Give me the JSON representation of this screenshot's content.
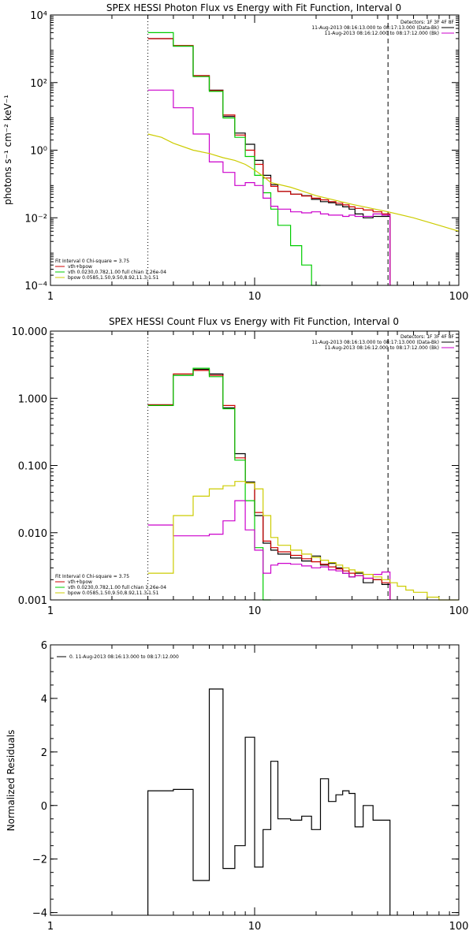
{
  "chart_data": [
    {
      "type": "line",
      "title": "SPEX HESSI Photon Flux vs Energy with Fit Function, Interval 0",
      "xlabel": "",
      "ylabel": "photons s⁻¹ cm⁻² keV⁻¹",
      "xscale": "log",
      "yscale": "log",
      "xlim": [
        1,
        100
      ],
      "ylim": [
        0.0001,
        10000
      ],
      "xticks": [
        1,
        10,
        100
      ],
      "xticklabels": [
        "1",
        "10",
        "100"
      ],
      "yticks": [
        0.0001,
        0.01,
        1,
        100,
        10000
      ],
      "yticklabels": [
        "10⁻⁴",
        "10⁻²",
        "10⁰",
        "10²",
        "10⁴"
      ],
      "grid": false,
      "legend_placement": "top-right",
      "legend": {
        "lines": [
          {
            "text": "Detectors: 1F 3F 4F 8F",
            "color": ""
          },
          {
            "text": "11-Aug-2013 08:16:13.000 to 08:17:13.000 (Data-Bk)",
            "color": "#000000"
          },
          {
            "text": "11-Aug-2013 08:16:12.000 to 08:17:12.000 (Bk)",
            "color": "#cc00cc"
          }
        ]
      },
      "fit_legend_placement": "bottom-left",
      "fit_legend": {
        "header": "Fit Interval 0   Chi-square = 3.75",
        "lines": [
          {
            "text": "vth+bpow",
            "color": "#cc0000"
          },
          {
            "text": "vth 0.0230,0.782,1.00  full chian 1.26e-04",
            "color": "#00cc00"
          },
          {
            "text": "bpow 0.0585,1.50,9.50,8.92,11.3,1.51",
            "color": "#cccc00"
          }
        ]
      },
      "vlines": [
        {
          "x": 3,
          "style": "dotted",
          "color": "#000000"
        },
        {
          "x": 45,
          "style": "dashed",
          "color": "#000000"
        }
      ],
      "edges": [
        3,
        4,
        5,
        6,
        7,
        8,
        9,
        10,
        11,
        12,
        13,
        15,
        17,
        19,
        21,
        23,
        25,
        27,
        29,
        31,
        34,
        38,
        42,
        46
      ],
      "series": [
        {
          "name": "Data-Bk",
          "color": "#000000",
          "values": [
            2000,
            1200,
            160,
            60,
            10,
            3.2,
            1.5,
            0.5,
            0.18,
            0.095,
            0.06,
            0.05,
            0.045,
            0.035,
            0.03,
            0.028,
            0.024,
            0.021,
            0.018,
            0.013,
            0.01,
            0.011,
            0.011
          ]
        },
        {
          "name": "vth+bpow",
          "color": "#cc0000",
          "values": [
            2000,
            1250,
            160,
            58,
            11,
            2.8,
            1.0,
            0.38,
            0.15,
            0.085,
            0.06,
            0.05,
            0.044,
            0.038,
            0.034,
            0.03,
            0.027,
            0.024,
            0.021,
            0.019,
            0.017,
            0.015,
            0.013
          ]
        },
        {
          "name": "vth",
          "color": "#00cc00",
          "values": [
            3000,
            1200,
            150,
            55,
            9,
            2.4,
            0.65,
            0.18,
            0.055,
            0.018,
            0.006,
            0.0015,
            0.0004,
            5e-05,
            null,
            null,
            null,
            null,
            null,
            null,
            null,
            null,
            null
          ]
        },
        {
          "name": "Bk",
          "color": "#cc00cc",
          "values": [
            60,
            18,
            3,
            0.45,
            0.22,
            0.09,
            0.11,
            0.09,
            0.038,
            0.022,
            0.018,
            0.015,
            0.014,
            0.015,
            0.013,
            0.012,
            0.012,
            0.011,
            0.012,
            0.011,
            0.011,
            0.013,
            0.012
          ]
        },
        {
          "name": "bpow",
          "color": "#cccc00",
          "kind": "line",
          "x": [
            3,
            3.5,
            4,
            5,
            6,
            7,
            8,
            9,
            10,
            11,
            12,
            15,
            20,
            30,
            45,
            60,
            80,
            100
          ],
          "y": [
            3,
            2.4,
            1.6,
            1.0,
            0.8,
            0.6,
            0.5,
            0.38,
            0.26,
            0.17,
            0.11,
            0.08,
            0.045,
            0.025,
            0.015,
            0.01,
            0.006,
            0.004
          ]
        }
      ]
    },
    {
      "type": "line",
      "title": "SPEX HESSI Count Flux vs Energy with Fit Function, Interval 0",
      "xlabel": "",
      "ylabel": "",
      "xscale": "log",
      "yscale": "log",
      "xlim": [
        1,
        100
      ],
      "ylim": [
        0.001,
        10
      ],
      "xticks": [
        1,
        10,
        100
      ],
      "xticklabels": [
        "1",
        "10",
        "100"
      ],
      "yticks": [
        0.001,
        0.01,
        0.1,
        1,
        10
      ],
      "yticklabels": [
        "0.001",
        "0.010",
        "0.100",
        "1.000",
        "10.000"
      ],
      "grid": false,
      "legend_placement": "top-right",
      "legend": {
        "lines": [
          {
            "text": "Detectors: 1F 3F 4F 8F",
            "color": ""
          },
          {
            "text": "11-Aug-2013 08:16:13.000 to 08:17:13.000 (Data-Bk)",
            "color": "#000000"
          },
          {
            "text": "11-Aug-2013 08:16:12.000 to 08:17:12.000 (Bk)",
            "color": "#cc00cc"
          }
        ]
      },
      "fit_legend_placement": "bottom-left",
      "fit_legend": {
        "header": "Fit Interval 0   Chi-square = 3.75",
        "lines": [
          {
            "text": "vth+bpow",
            "color": "#cc0000"
          },
          {
            "text": "vth 0.0230,0.782,1.00  full chian 1.26e-04",
            "color": "#00cc00"
          },
          {
            "text": "bpow 0.0585,1.50,9.50,8.92,11.3,1.51",
            "color": "#cccc00"
          }
        ]
      },
      "vlines": [
        {
          "x": 3,
          "style": "dotted",
          "color": "#000000"
        },
        {
          "x": 45,
          "style": "dashed",
          "color": "#000000"
        }
      ],
      "edges": [
        3,
        4,
        5,
        6,
        7,
        8,
        9,
        10,
        11,
        12,
        13,
        15,
        17,
        19,
        21,
        23,
        25,
        27,
        29,
        31,
        34,
        38,
        42,
        46,
        50,
        55,
        60,
        70,
        80,
        90,
        100
      ],
      "series": [
        {
          "name": "Data-Bk",
          "color": "#000000",
          "values": [
            0.8,
            2.2,
            2.7,
            2.3,
            0.72,
            0.15,
            0.057,
            0.018,
            0.007,
            0.0055,
            0.0048,
            0.0042,
            0.0038,
            0.0045,
            0.0033,
            0.0035,
            0.003,
            0.0025,
            0.0022,
            0.0025,
            0.0018,
            0.002,
            0.0017,
            null,
            null,
            null,
            null,
            null,
            null,
            null
          ]
        },
        {
          "name": "vth+bpow",
          "color": "#cc0000",
          "values": [
            0.8,
            2.3,
            2.6,
            2.2,
            0.78,
            0.13,
            0.055,
            0.02,
            0.0075,
            0.006,
            0.0052,
            0.0046,
            0.0041,
            0.0037,
            0.0034,
            0.0031,
            0.0029,
            0.0027,
            0.0025,
            0.0023,
            0.0021,
            0.002,
            0.0018,
            null,
            null,
            null,
            null,
            null,
            null,
            null
          ]
        },
        {
          "name": "vth",
          "color": "#00cc00",
          "values": [
            0.78,
            2.2,
            2.8,
            2.1,
            0.7,
            0.12,
            0.03,
            0.006,
            0.0009,
            null,
            null,
            null,
            null,
            null,
            null,
            null,
            null,
            null,
            null,
            null,
            null,
            null,
            null,
            null,
            null,
            null,
            null,
            null,
            null,
            null
          ]
        },
        {
          "name": "Bk",
          "color": "#cc00cc",
          "values": [
            0.013,
            0.009,
            0.009,
            0.0095,
            0.015,
            0.03,
            0.011,
            0.0055,
            0.0025,
            0.0033,
            0.0035,
            0.0034,
            0.0032,
            0.003,
            0.0031,
            0.0028,
            0.0027,
            0.0025,
            0.0022,
            0.0023,
            0.0021,
            0.0024,
            0.0026,
            null,
            null,
            null,
            null,
            null,
            null,
            null
          ]
        },
        {
          "name": "bpow",
          "color": "#cccc00",
          "values": [
            0.0025,
            0.018,
            0.035,
            0.045,
            0.05,
            0.058,
            0.055,
            0.045,
            0.018,
            0.0085,
            0.0065,
            0.0055,
            0.0048,
            0.0043,
            0.0039,
            0.0036,
            0.0033,
            0.003,
            0.0028,
            0.0026,
            0.0024,
            0.0022,
            0.002,
            0.0018,
            0.0016,
            0.0014,
            0.0013,
            0.0011,
            0.001,
            0.0009
          ]
        }
      ]
    },
    {
      "type": "line",
      "title": "",
      "xlabel": "",
      "ylabel": "Normalized Residuals",
      "xscale": "log",
      "yscale": "linear",
      "xlim": [
        1,
        100
      ],
      "ylim": [
        -4.1,
        6
      ],
      "xticks": [
        1,
        10,
        100
      ],
      "xticklabels": [
        "1",
        "10",
        "100"
      ],
      "yticks": [
        -4,
        -2,
        0,
        2,
        4,
        6
      ],
      "yticklabels": [
        "−4",
        "−2",
        "0",
        "2",
        "4",
        "6"
      ],
      "grid": false,
      "legend_placement": "top-left",
      "legend": {
        "lines": [
          {
            "text": "0. 11-Aug-2013 08:16:13.000 to 08:17:12.000",
            "color": "#000000"
          }
        ]
      },
      "edges": [
        3,
        4,
        5,
        6,
        7,
        8,
        9,
        10,
        11,
        12,
        13,
        15,
        17,
        19,
        21,
        23,
        25,
        27,
        29,
        31,
        34,
        38,
        42,
        46
      ],
      "series": [
        {
          "name": "0. 11-Aug-2013 08:16:13.000 to 08:17:12.000",
          "color": "#000000",
          "drop_to_bottom": true,
          "values": [
            0.55,
            0.6,
            -2.8,
            4.35,
            -2.35,
            -1.5,
            2.55,
            -2.3,
            -0.9,
            1.65,
            -0.5,
            -0.55,
            -0.4,
            -0.9,
            1.0,
            0.15,
            0.4,
            0.55,
            0.45,
            -0.8,
            0.0,
            -0.55,
            -0.55
          ]
        }
      ]
    }
  ]
}
